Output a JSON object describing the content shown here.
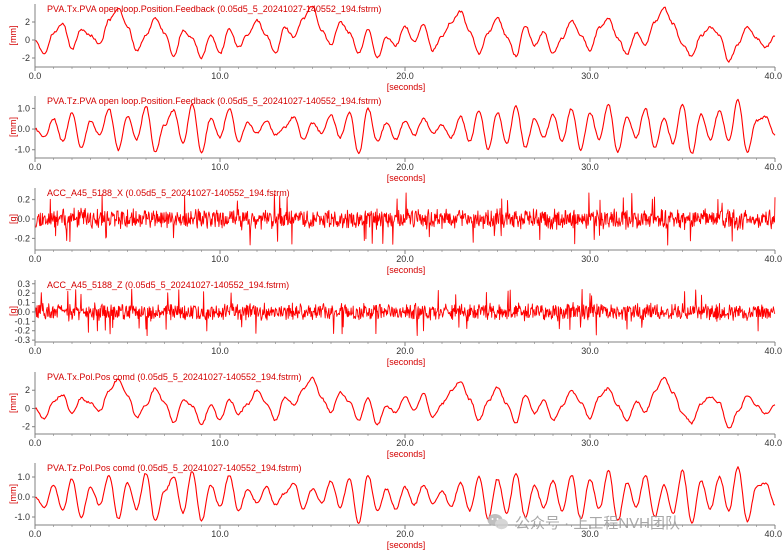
{
  "colors": {
    "signal": "#ff0000",
    "label": "#d40000",
    "axis": "#808080",
    "grid_text": "#333333"
  },
  "watermark": {
    "text": "公众号 · 上工程NVH团队"
  },
  "chart_data": [
    {
      "type": "line",
      "title": "PVA.Tx.PVA open loop.Position.Feedback (0.05d5_5_20241027-140552_194.fstrm)",
      "ylabel": "[mm]",
      "xlabel": "[seconds]",
      "ylim": [
        -3,
        4
      ],
      "yticks": [
        -2,
        0,
        2
      ],
      "xlim": [
        0,
        40
      ],
      "xticks": [
        "0.0",
        "10.0",
        "20.0",
        "30.0",
        "40.0"
      ],
      "grid": false,
      "series": [
        {
          "x": [
            0,
            0.5,
            1,
            1.5,
            2,
            2.5,
            3,
            3.5,
            4,
            4.5,
            5,
            5.5,
            6,
            6.5,
            7,
            7.5,
            8,
            8.5,
            9,
            9.5,
            10,
            10.5,
            11,
            11.5,
            12,
            12.5,
            13,
            13.5,
            14,
            14.5,
            15,
            15.5,
            16,
            16.5,
            17,
            17.5,
            18,
            18.5,
            19,
            19.5,
            20,
            20.5,
            21,
            21.5,
            22,
            22.5,
            23,
            23.5,
            24,
            24.5,
            25,
            25.5,
            26,
            26.5,
            27,
            27.5,
            28,
            28.5,
            29,
            29.5,
            30,
            30.5,
            31,
            31.5,
            32,
            32.5,
            33,
            33.5,
            34,
            34.5,
            35,
            35.5,
            36,
            36.5,
            37,
            37.5,
            38,
            38.5,
            39,
            39.5,
            40
          ],
          "y": [
            0,
            -1.5,
            0.8,
            1.8,
            -1,
            1.2,
            0.5,
            -0.5,
            2.2,
            3.5,
            1.5,
            -1.2,
            0.5,
            2.5,
            0.8,
            -1.8,
            1,
            0.2,
            -2,
            0.5,
            -1.5,
            1.2,
            -0.8,
            0.6,
            2.2,
            0.5,
            -1.5,
            1.4,
            0.3,
            2.4,
            3.8,
            1,
            -0.5,
            2,
            0.8,
            -1.5,
            1.2,
            -2,
            0.3,
            -0.6,
            1.5,
            -0.2,
            1.8,
            -1.2,
            0.4,
            2,
            3.2,
            1,
            -1.5,
            0.8,
            2.5,
            0.4,
            -1.8,
            1.6,
            -0.6,
            0.9,
            -1.5,
            0.2,
            2.2,
            0.6,
            -1.2,
            1.4,
            2.4,
            0.2,
            -1.6,
            0.8,
            -0.5,
            2,
            3.6,
            1.8,
            -0.6,
            -1.8,
            0.5,
            1.4,
            0.6,
            -2.4,
            -0.5,
            1.5,
            0.2,
            -0.8,
            0.4
          ]
        }
      ]
    },
    {
      "type": "line",
      "title": "PVA.Tz.PVA open loop.Position.Feedback (0.05d5_5_20241027-140552_194.fstrm)",
      "ylabel": "[mm]",
      "xlabel": "[seconds]",
      "ylim": [
        -1.4,
        1.6
      ],
      "yticks": [
        -1.0,
        0.0,
        1.0
      ],
      "ytick_labels": [
        "-1.0",
        "0.0",
        "1.0"
      ],
      "xlim": [
        0,
        40
      ],
      "xticks": [
        "0.0",
        "10.0",
        "20.0",
        "30.0",
        "40.0"
      ],
      "grid": false,
      "series": [
        {
          "x": [
            0,
            0.5,
            1,
            1.5,
            2,
            2.5,
            3,
            3.5,
            4,
            4.5,
            5,
            5.5,
            6,
            6.5,
            7,
            7.5,
            8,
            8.5,
            9,
            9.5,
            10,
            10.5,
            11,
            11.5,
            12,
            12.5,
            13,
            13.5,
            14,
            14.5,
            15,
            15.5,
            16,
            16.5,
            17,
            17.5,
            18,
            18.5,
            19,
            19.5,
            20,
            20.5,
            21,
            21.5,
            22,
            22.5,
            23,
            23.5,
            24,
            24.5,
            25,
            25.5,
            26,
            26.5,
            27,
            27.5,
            28,
            28.5,
            29,
            29.5,
            30,
            30.5,
            31,
            31.5,
            32,
            32.5,
            33,
            33.5,
            34,
            34.5,
            35,
            35.5,
            36,
            36.5,
            37,
            37.5,
            38,
            38.5,
            39,
            39.5,
            40
          ],
          "y": [
            0,
            -0.4,
            0.5,
            -0.6,
            0.8,
            -0.9,
            0.4,
            -0.3,
            1,
            -1,
            0.6,
            -0.5,
            1.1,
            -1.1,
            0.2,
            0.9,
            -0.7,
            1.2,
            -1.1,
            0.5,
            -0.4,
            1,
            -0.6,
            0.3,
            -0.2,
            0.4,
            -0.3,
            0.1,
            0.6,
            -0.5,
            0.3,
            -0.2,
            0.7,
            -0.4,
            0.8,
            -1.2,
            1,
            -0.6,
            0.3,
            -0.5,
            0.4,
            -0.3,
            0.5,
            -0.2,
            0.2,
            -0.4,
            0.6,
            -0.6,
            0.9,
            -1,
            0.8,
            -0.7,
            1.1,
            -0.9,
            0.5,
            -0.4,
            0.7,
            -0.6,
            1,
            -1,
            0.8,
            -0.5,
            1.2,
            -1.1,
            0.6,
            -0.4,
            1,
            -0.9,
            0.5,
            -0.7,
            1.2,
            -1.2,
            0.7,
            -0.5,
            0.9,
            -0.6,
            1.4,
            -1.1,
            0.4,
            0.6,
            -0.3
          ]
        }
      ]
    },
    {
      "type": "line",
      "title": "ACC_A45_5188_X (0.05d5_5_20241027-140552_194.fstrm)",
      "ylabel": "[g]",
      "xlabel": "[seconds]",
      "ylim": [
        -0.32,
        0.32
      ],
      "yticks": [
        -0.2,
        0,
        0.2
      ],
      "ytick_labels": [
        "-0.2",
        "0.0",
        "0.2"
      ],
      "xlim": [
        0,
        40
      ],
      "xticks": [
        "0.0",
        "10.0",
        "20.0",
        "30.0",
        "40.0"
      ],
      "grid": false,
      "noise": {
        "envelope": 0.09,
        "peak": 0.27,
        "samples": 1400,
        "seed": 11
      }
    },
    {
      "type": "line",
      "title": "ACC_A45_5188_Z (0.05d5_5_20241027-140552_194.fstrm)",
      "ylabel": "[g]",
      "xlabel": "[seconds]",
      "ylim": [
        -0.32,
        0.34
      ],
      "yticks": [
        -0.3,
        -0.2,
        -0.1,
        0.0,
        0.1,
        0.2,
        0.3
      ],
      "ytick_labels": [
        "-0.3",
        "-0.2",
        "-0.1",
        "0.0",
        "0.1",
        "0.2",
        "0.3"
      ],
      "xlim": [
        0,
        40
      ],
      "xticks": [
        "0.0",
        "10.0",
        "20.0",
        "30.0",
        "40.0"
      ],
      "grid": false,
      "noise": {
        "envelope": 0.08,
        "peak": 0.26,
        "samples": 1400,
        "seed": 29
      }
    },
    {
      "type": "line",
      "title": "PVA.Tx.Pol.Pos comd (0.05d5_5_20241027-140552_194.fstrm)",
      "ylabel": "[mm]",
      "xlabel": "[seconds]",
      "ylim": [
        -2.8,
        4
      ],
      "yticks": [
        -2,
        0,
        2
      ],
      "xlim": [
        0,
        40
      ],
      "xticks": [
        "0.0",
        "10.0",
        "20.0",
        "30.0",
        "40.0"
      ],
      "grid": false,
      "series": [
        {
          "x": [
            0,
            0.5,
            1,
            1.5,
            2,
            2.5,
            3,
            3.5,
            4,
            4.5,
            5,
            5.5,
            6,
            6.5,
            7,
            7.5,
            8,
            8.5,
            9,
            9.5,
            10,
            10.5,
            11,
            11.5,
            12,
            12.5,
            13,
            13.5,
            14,
            14.5,
            15,
            15.5,
            16,
            16.5,
            17,
            17.5,
            18,
            18.5,
            19,
            19.5,
            20,
            20.5,
            21,
            21.5,
            22,
            22.5,
            23,
            23.5,
            24,
            24.5,
            25,
            25.5,
            26,
            26.5,
            27,
            27.5,
            28,
            28.5,
            29,
            29.5,
            30,
            30.5,
            31,
            31.5,
            32,
            32.5,
            33,
            33.5,
            34,
            34.5,
            35,
            35.5,
            36,
            36.5,
            37,
            37.5,
            38,
            38.5,
            39,
            39.5,
            40
          ],
          "y": [
            0,
            -1.2,
            0.8,
            1.5,
            -0.6,
            1.1,
            0.6,
            -0.3,
            2,
            3.2,
            1.4,
            -1,
            0.4,
            2.2,
            0.7,
            -1.6,
            0.9,
            0.3,
            -1.8,
            0.4,
            -1.3,
            1,
            -0.6,
            0.5,
            2,
            0.6,
            -1.3,
            1.2,
            0.4,
            2.2,
            3.4,
            1.1,
            -0.4,
            1.8,
            0.7,
            -1.3,
            1.1,
            -1.8,
            0.3,
            -0.5,
            1.3,
            -0.1,
            1.6,
            -1,
            0.5,
            1.9,
            3,
            1,
            -1.3,
            0.8,
            2.3,
            0.5,
            -1.6,
            1.5,
            -0.5,
            0.9,
            -1.3,
            0.3,
            2,
            0.6,
            -1.1,
            1.3,
            2.2,
            0.3,
            -1.4,
            0.8,
            -0.4,
            1.9,
            3.4,
            1.7,
            -0.5,
            -1.6,
            0.5,
            1.3,
            0.6,
            -2.2,
            -0.4,
            1.4,
            0.3,
            -0.6,
            0.4
          ]
        }
      ]
    },
    {
      "type": "line",
      "title": "PVA.Tz.Pol.Pos comd (0.05d5_5_20241027-140552_194.fstrm)",
      "ylabel": "[mm]",
      "xlabel": "[seconds]",
      "ylim": [
        -1.4,
        1.7
      ],
      "yticks": [
        -1.0,
        0.0,
        1.0
      ],
      "ytick_labels": [
        "-1.0",
        "0.0",
        "1.0"
      ],
      "xlim": [
        0,
        40
      ],
      "xticks": [
        "0.0",
        "10.0",
        "20.0",
        "30.0",
        "40.0"
      ],
      "grid": false,
      "series": [
        {
          "x": [
            0,
            0.5,
            1,
            1.5,
            2,
            2.5,
            3,
            3.5,
            4,
            4.5,
            5,
            5.5,
            6,
            6.5,
            7,
            7.5,
            8,
            8.5,
            9,
            9.5,
            10,
            10.5,
            11,
            11.5,
            12,
            12.5,
            13,
            13.5,
            14,
            14.5,
            15,
            15.5,
            16,
            16.5,
            17,
            17.5,
            18,
            18.5,
            19,
            19.5,
            20,
            20.5,
            21,
            21.5,
            22,
            22.5,
            23,
            23.5,
            24,
            24.5,
            25,
            25.5,
            26,
            26.5,
            27,
            27.5,
            28,
            28.5,
            29,
            29.5,
            30,
            30.5,
            31,
            31.5,
            32,
            32.5,
            33,
            33.5,
            34,
            34.5,
            35,
            35.5,
            36,
            36.5,
            37,
            37.5,
            38,
            38.5,
            39,
            39.5,
            40
          ],
          "y": [
            0,
            -0.5,
            0.6,
            -0.7,
            0.9,
            -1,
            0.5,
            -0.4,
            1.1,
            -1.1,
            0.7,
            -0.6,
            1.2,
            -1.2,
            0.3,
            1,
            -0.8,
            1.3,
            -1.2,
            0.6,
            -0.5,
            1.1,
            -0.7,
            0.4,
            -0.3,
            0.5,
            -0.4,
            0.2,
            0.7,
            -0.6,
            0.4,
            -0.3,
            0.8,
            -0.5,
            0.9,
            -1.3,
            1.1,
            -0.7,
            0.4,
            -0.6,
            0.5,
            -0.4,
            0.6,
            -0.3,
            0.3,
            -0.5,
            0.7,
            -0.7,
            1,
            -1.1,
            0.9,
            -0.8,
            1.2,
            -1,
            0.6,
            -0.5,
            0.8,
            -0.7,
            1.1,
            -1.1,
            0.9,
            -0.6,
            1.3,
            -1.2,
            0.7,
            -0.5,
            1.1,
            -1,
            0.6,
            -0.8,
            1.3,
            -1.3,
            0.8,
            -0.6,
            1,
            -0.7,
            1.5,
            -1.2,
            0.5,
            0.7,
            -0.4
          ]
        }
      ]
    }
  ]
}
